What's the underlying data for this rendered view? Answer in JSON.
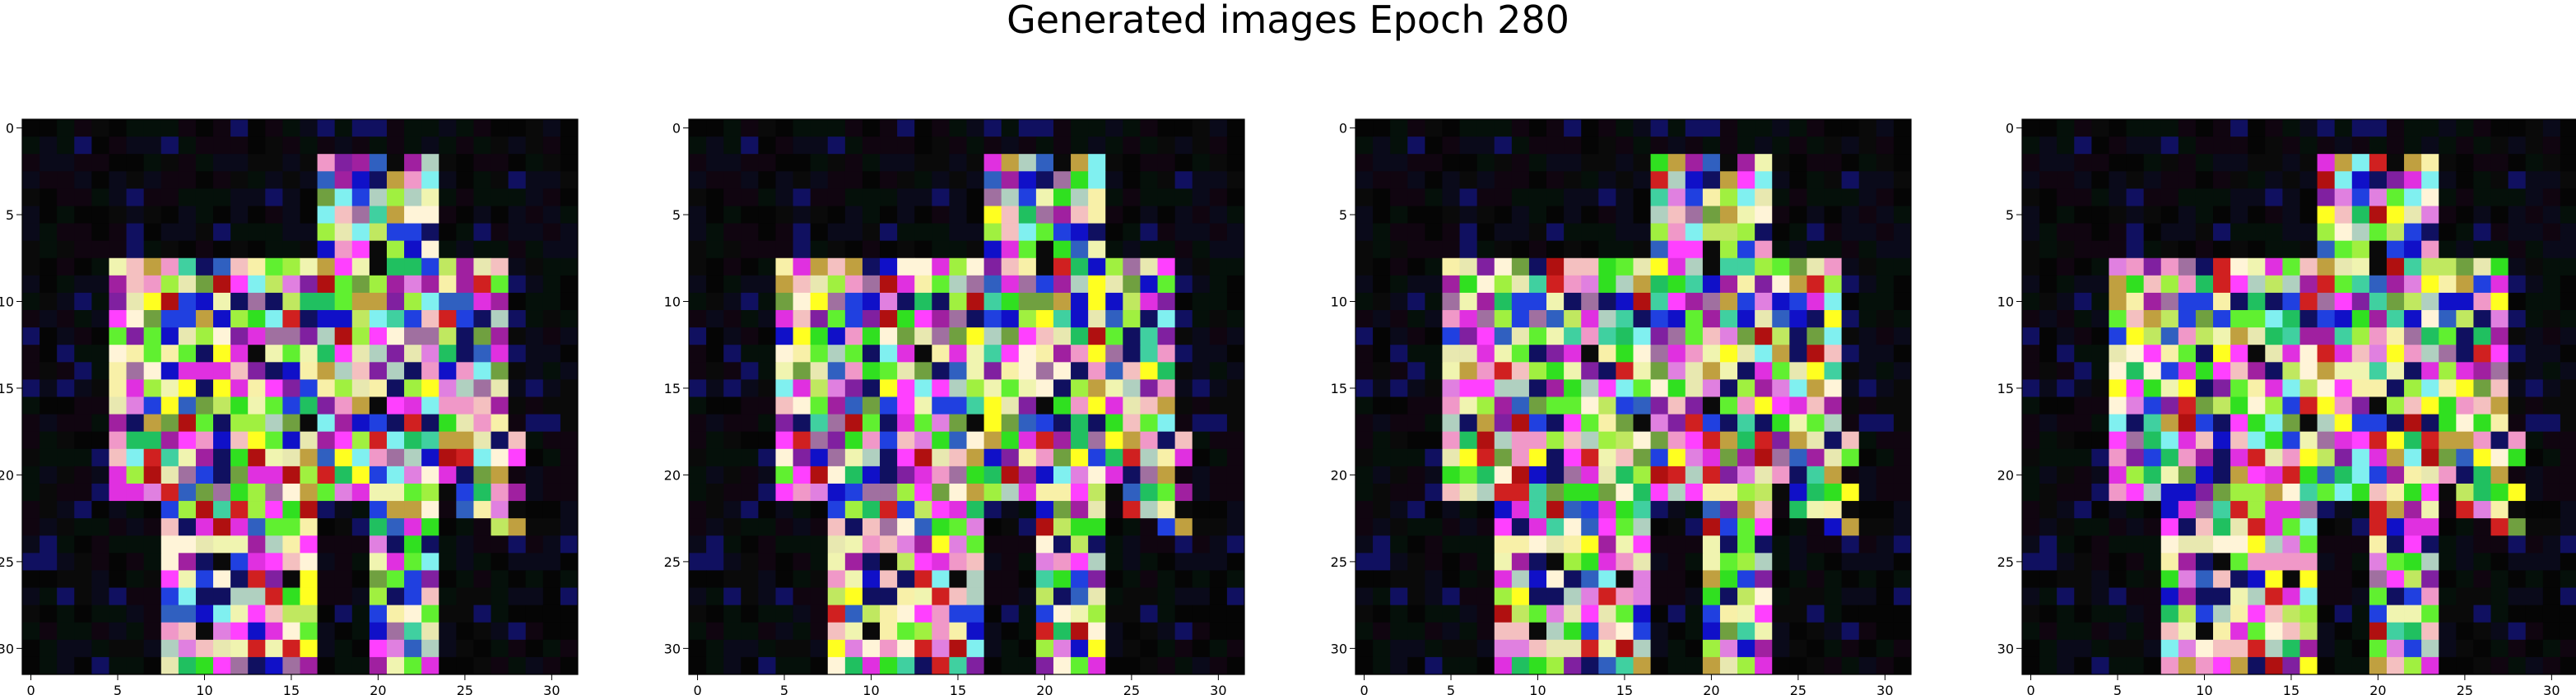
{
  "figure": {
    "title": "Generated images Epoch 280"
  },
  "axes": {
    "x_ticks": [
      "0",
      "5",
      "10",
      "15",
      "20",
      "25",
      "30"
    ],
    "y_ticks": [
      "0",
      "5",
      "10",
      "15",
      "20",
      "25",
      "30"
    ],
    "grid_size": 32
  },
  "panels": [
    {
      "variant": 0
    },
    {
      "variant": 1
    },
    {
      "variant": 2
    },
    {
      "variant": 3
    }
  ],
  "palette": {
    "background": "#000000",
    "colors": [
      "#f8f0a8",
      "#f0f4b0",
      "#fff4d8",
      "#e8e8b0",
      "#f4c0c0",
      "#f098c8",
      "#e030e0",
      "#ff40ff",
      "#30e020",
      "#60f030",
      "#a0f040",
      "#c0e860",
      "#2040e0",
      "#1010c8",
      "#3060c0",
      "#d02020",
      "#b01010",
      "#20c060",
      "#40d0a0",
      "#a070a0",
      "#70a040",
      "#c0a040",
      "#8020a0",
      "#a020a0",
      "#ffff20",
      "#80f0f0",
      "#b0d0c0",
      "#e080e0"
    ]
  }
}
